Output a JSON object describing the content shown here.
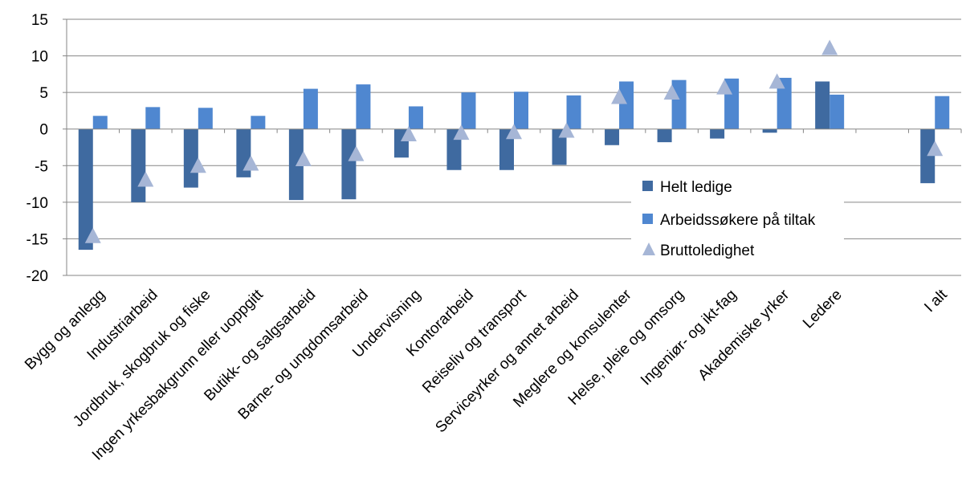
{
  "chart_data": {
    "type": "bar",
    "title": "",
    "xlabel": "",
    "ylabel": "",
    "ylim": [
      -20,
      15
    ],
    "yticks": [
      15,
      10,
      5,
      0,
      -5,
      -10,
      -15,
      -20
    ],
    "grid": true,
    "legend_position": "right-inside",
    "categories": [
      "Bygg og anlegg",
      "Industriarbeid",
      "Jordbruk, skogbruk og fiske",
      "Ingen yrkesbakgrunn eller uoppgitt",
      "Butikk- og salgsarbeid",
      "Barne- og ungdomsarbeid",
      "Undervisning",
      "Kontorarbeid",
      "Reiseliv og transport",
      "Serviceyrker og annet arbeid",
      "Meglere og konsulenter",
      "Helse, pleie og omsorg",
      "Ingeniør- og ikt-fag",
      "Akademiske yrker",
      "Ledere",
      "",
      "I alt"
    ],
    "series": [
      {
        "name": "Helt ledige",
        "kind": "bar",
        "color": "#3f6aa0",
        "values": [
          -16.5,
          -10.0,
          -8.0,
          -6.6,
          -9.7,
          -9.6,
          -3.9,
          -5.6,
          -5.6,
          -4.9,
          -2.2,
          -1.8,
          -1.3,
          -0.5,
          6.5,
          null,
          -7.4
        ]
      },
      {
        "name": "Arbeidssøkere på tiltak",
        "kind": "bar",
        "color": "#4f87d0",
        "values": [
          1.8,
          3.0,
          2.9,
          1.8,
          5.5,
          6.1,
          3.1,
          5.0,
          5.1,
          4.6,
          6.5,
          6.7,
          6.9,
          7.0,
          4.7,
          null,
          4.5
        ]
      },
      {
        "name": "Bruttoledighet",
        "kind": "marker",
        "marker": "triangle",
        "color": "#a6b6d6",
        "values": [
          -14.7,
          -7.0,
          -5.1,
          -4.8,
          -4.2,
          -3.5,
          -0.8,
          -0.6,
          -0.5,
          -0.3,
          4.3,
          4.9,
          5.6,
          6.4,
          11.0,
          null,
          -2.8
        ]
      }
    ],
    "axis_color": "#868686",
    "grid_color": "#868686"
  }
}
